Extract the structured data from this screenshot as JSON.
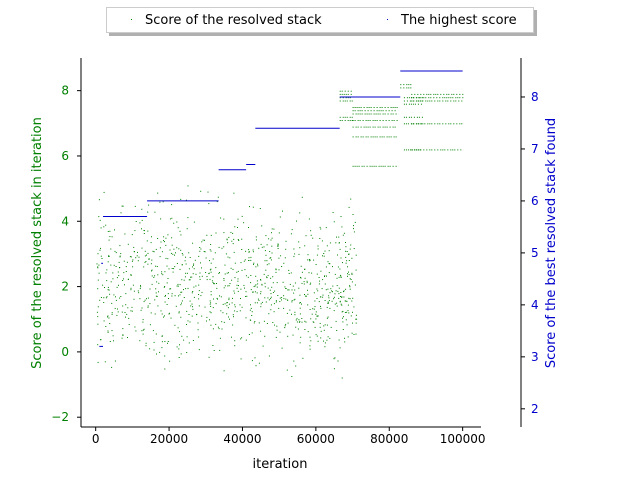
{
  "chart_data": {
    "type": "scatter",
    "xlabel": "iteration",
    "ylabel_left": "Score of the resolved stack in iteration",
    "ylabel_right": "Score of the best resolved stack found",
    "xlim": [
      -4000,
      105000
    ],
    "ylim_left": [
      -2.3,
      9.0
    ],
    "ylim_right": [
      1.65,
      8.75
    ],
    "x_ticks": [
      0,
      20000,
      40000,
      60000,
      80000,
      100000
    ],
    "x_tick_labels": [
      "0",
      "20000",
      "40000",
      "60000",
      "80000",
      "100000"
    ],
    "y_left_ticks": [
      -2,
      0,
      2,
      4,
      6,
      8
    ],
    "y_left_tick_labels": [
      "−2",
      "0",
      "2",
      "4",
      "6",
      "8"
    ],
    "y_right_ticks": [
      2,
      3,
      4,
      5,
      6,
      7,
      8
    ],
    "y_right_tick_labels": [
      "2",
      "3",
      "4",
      "5",
      "6",
      "7",
      "8"
    ],
    "grid": false,
    "legend_position": "top-center",
    "colors": {
      "left_series": "#008000",
      "right_series": "#0000cc",
      "left_axis": "#008000",
      "right_axis": "#0000cc"
    },
    "series": [
      {
        "name": "Score of the resolved stack",
        "axis": "left",
        "marker": "dot",
        "clouds": [
          {
            "x_range": [
              200,
              71000
            ],
            "y_range": [
              -1.8,
              6.0
            ],
            "density": "high"
          }
        ],
        "bands": [
          {
            "x_range": [
              66500,
              70000
            ],
            "y_values": [
              7.1,
              7.2,
              7.7,
              7.8,
              7.9,
              8.0
            ]
          },
          {
            "x_range": [
              70000,
              82000
            ],
            "y_values": [
              5.7,
              6.6,
              6.9,
              7.1,
              7.3,
              7.4,
              7.5
            ]
          },
          {
            "x_range": [
              83000,
              86000
            ],
            "y_values": [
              8.1,
              8.2
            ]
          },
          {
            "x_range": [
              84000,
              89000
            ],
            "y_values": [
              6.2,
              7.0,
              7.2,
              7.6,
              7.7,
              7.8
            ]
          },
          {
            "x_range": [
              86000,
              100000
            ],
            "y_values": [
              7.7,
              7.8,
              7.9,
              7.0,
              6.2
            ]
          }
        ]
      },
      {
        "name": "The highest score",
        "axis": "right",
        "marker": "dot",
        "segments": [
          {
            "x_range": [
              1000,
              2000
            ],
            "y": 3.2
          },
          {
            "x_range": [
              1500,
              2000
            ],
            "y": 4.8
          },
          {
            "x_range": [
              2000,
              14000
            ],
            "y": 5.7
          },
          {
            "x_range": [
              14000,
              33500
            ],
            "y": 6.0
          },
          {
            "x_range": [
              33500,
              41000
            ],
            "y": 6.6
          },
          {
            "x_range": [
              41000,
              43500
            ],
            "y": 6.7
          },
          {
            "x_range": [
              43500,
              66500
            ],
            "y": 7.4
          },
          {
            "x_range": [
              66500,
              83000
            ],
            "y": 8.0
          },
          {
            "x_range": [
              83000,
              100000
            ],
            "y": 8.5
          }
        ]
      }
    ]
  },
  "legend": {
    "entries": [
      "Score of the resolved stack",
      "The highest score"
    ]
  }
}
